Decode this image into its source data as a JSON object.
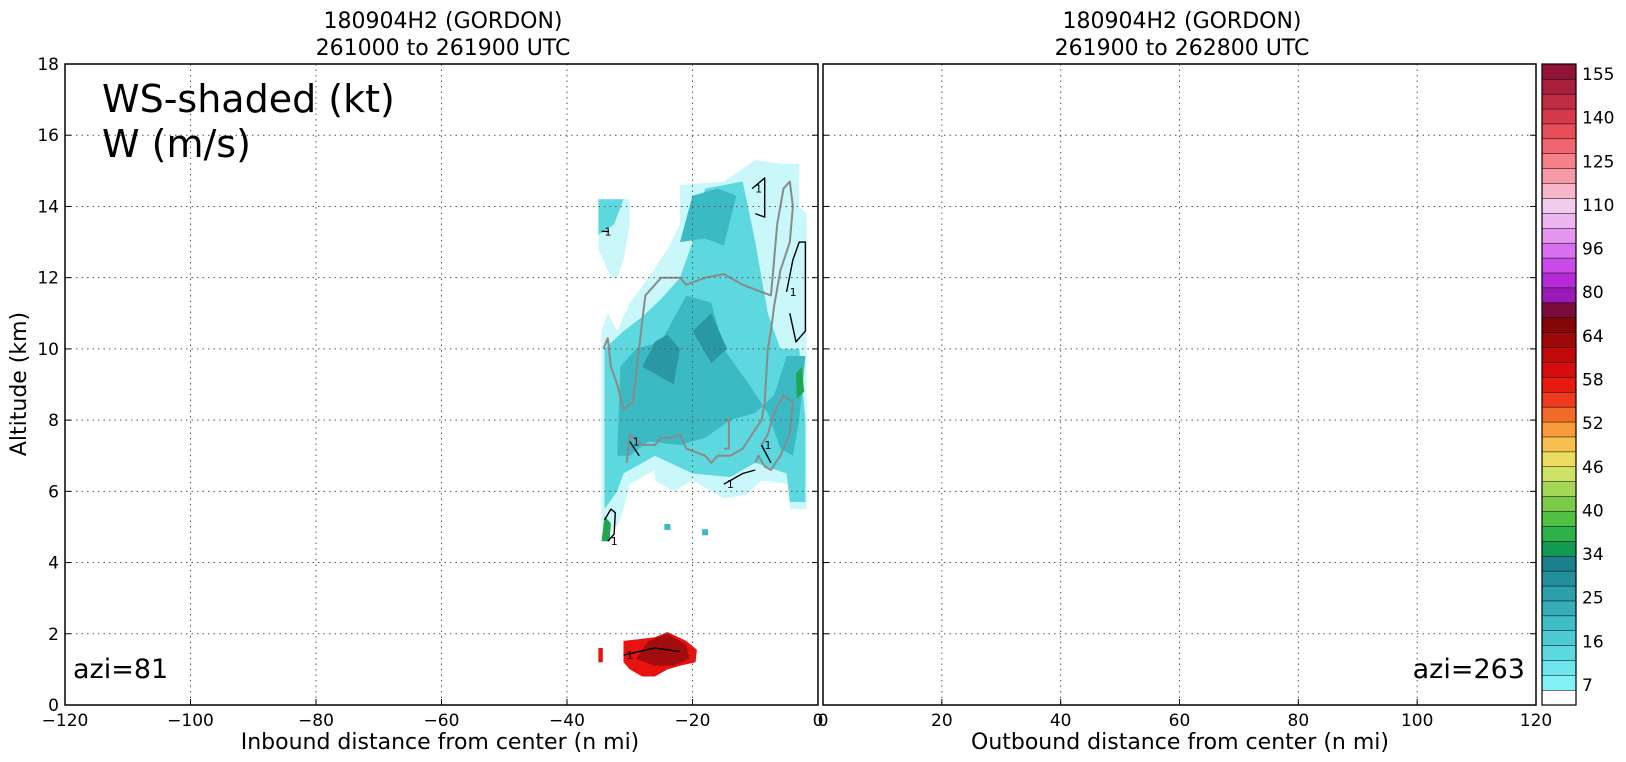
{
  "colors": {
    "cyan_light": "#c9f7fa",
    "cyan": "#5dd8de",
    "teal": "#3cbac4",
    "teal_dark": "#2a98a4",
    "green": "#1fa650",
    "red": "#e8120e",
    "red_dark": "#a30c0c",
    "contour_black": "#000000",
    "contour_gray": "#8a8a8a",
    "grid": "#555555"
  },
  "chart_data": [
    {
      "type": "heatmap",
      "panel": "left",
      "title_line1": "180904H2 (GORDON)",
      "title_line2": "261000 to 261900 UTC",
      "xlabel": "Inbound distance from center (n mi)",
      "ylabel": "Altitude (km)",
      "xlim": [
        -120,
        0
      ],
      "ylim": [
        0,
        18
      ],
      "xticks": [
        "−120",
        "−100",
        "−80",
        "−60",
        "−40",
        "−20",
        "0"
      ],
      "yticks": [
        "0",
        "2",
        "4",
        "6",
        "8",
        "10",
        "12",
        "14",
        "16",
        "18"
      ],
      "annotation_line1": "WS-shaded (kt)",
      "annotation_line2": "W (m/s)",
      "azimuth_label": "azi=81",
      "grid": true,
      "wind_speed_regions": [
        {
          "level": "light",
          "points": [
            [
              -34.5,
              8.8
            ],
            [
              -34.5,
              10.5
            ],
            [
              -33.5,
              11
            ],
            [
              -32,
              10.5
            ],
            [
              -30,
              11.3
            ],
            [
              -27,
              12
            ],
            [
              -24,
              12.8
            ],
            [
              -22,
              13.5
            ],
            [
              -22,
              14.6
            ],
            [
              -15,
              14.7
            ],
            [
              -10,
              15.3
            ],
            [
              -6,
              15.2
            ],
            [
              -3,
              15.2
            ],
            [
              -3,
              14
            ],
            [
              -1.8,
              13.8
            ],
            [
              -1.8,
              5.5
            ],
            [
              -4.5,
              5.5
            ],
            [
              -4.5,
              6.2
            ],
            [
              -9,
              6.3
            ],
            [
              -11.5,
              5.9
            ],
            [
              -15,
              5.8
            ],
            [
              -20,
              6.3
            ],
            [
              -23,
              6
            ],
            [
              -26,
              6.3
            ],
            [
              -26,
              6.6
            ],
            [
              -30,
              6.2
            ],
            [
              -31,
              5.5
            ],
            [
              -32,
              5
            ],
            [
              -34.5,
              5
            ],
            [
              -34.5,
              6.2
            ]
          ]
        },
        {
          "level": "light",
          "points": [
            [
              -35,
              12.8
            ],
            [
              -35,
              14.2
            ],
            [
              -30,
              14.2
            ],
            [
              -30,
              13.5
            ],
            [
              -31,
              12.5
            ],
            [
              -32,
              12
            ],
            [
              -33,
              12
            ]
          ]
        },
        {
          "level": "mid",
          "points": [
            [
              -34,
              5.5
            ],
            [
              -34,
              10
            ],
            [
              -31,
              10.5
            ],
            [
              -28,
              10.9
            ],
            [
              -25,
              11.4
            ],
            [
              -22,
              12
            ],
            [
              -20,
              13
            ],
            [
              -18,
              14.5
            ],
            [
              -12,
              14.7
            ],
            [
              -10,
              13
            ],
            [
              -8,
              11
            ],
            [
              -6,
              10
            ],
            [
              -3,
              10
            ],
            [
              -2,
              8
            ],
            [
              -2,
              5.7
            ],
            [
              -4.5,
              5.7
            ],
            [
              -5,
              6.5
            ],
            [
              -10,
              6.8
            ],
            [
              -14,
              6.4
            ],
            [
              -20,
              6.5
            ],
            [
              -26,
              7
            ],
            [
              -31,
              6.5
            ],
            [
              -32,
              6
            ]
          ]
        },
        {
          "level": "mid",
          "points": [
            [
              -35,
              13.2
            ],
            [
              -35,
              14.2
            ],
            [
              -31,
              14.2
            ],
            [
              -32.5,
              13.5
            ]
          ]
        },
        {
          "level": "dark",
          "points": [
            [
              -32,
              7
            ],
            [
              -31.5,
              9.5
            ],
            [
              -29,
              10
            ],
            [
              -25,
              10.2
            ],
            [
              -21,
              11.5
            ],
            [
              -17,
              11.3
            ],
            [
              -15,
              10
            ],
            [
              -13,
              9.5
            ],
            [
              -11,
              9
            ],
            [
              -8,
              8.2
            ],
            [
              -6,
              7.2
            ],
            [
              -4,
              7
            ],
            [
              -3,
              8
            ],
            [
              -2,
              9.8
            ],
            [
              -5,
              9.8
            ],
            [
              -7,
              8.7
            ],
            [
              -10,
              8.2
            ],
            [
              -14,
              8
            ],
            [
              -18,
              7.5
            ],
            [
              -22,
              7.3
            ],
            [
              -27,
              7.4
            ],
            [
              -30,
              7
            ]
          ]
        },
        {
          "level": "dark",
          "points": [
            [
              -22,
              13
            ],
            [
              -20,
              14.3
            ],
            [
              -16,
              14.5
            ],
            [
              -13,
              14.3
            ],
            [
              -15,
              12.9
            ],
            [
              -18,
              13.1
            ]
          ]
        },
        {
          "level": "darkest",
          "points": [
            [
              -28,
              9.5
            ],
            [
              -26,
              10.2
            ],
            [
              -24,
              10.4
            ],
            [
              -22,
              10
            ],
            [
              -23,
              9
            ]
          ]
        },
        {
          "level": "darkest",
          "points": [
            [
              -20,
              10.5
            ],
            [
              -17,
              11
            ],
            [
              -14.5,
              10
            ],
            [
              -17,
              9.6
            ]
          ]
        },
        {
          "level": "green",
          "points": [
            [
              -3.4,
              8.6
            ],
            [
              -3.5,
              9.3
            ],
            [
              -2.6,
              9.5
            ],
            [
              -2.2,
              8.8
            ]
          ]
        },
        {
          "level": "green",
          "points": [
            [
              -34.5,
              4.6
            ],
            [
              -34,
              5.3
            ],
            [
              -33,
              5.1
            ],
            [
              -33.2,
              4.6
            ]
          ]
        }
      ],
      "low_level_patch": [
        {
          "level": "red",
          "points": [
            [
              -31,
              1.2
            ],
            [
              -31,
              1.8
            ],
            [
              -26,
              1.9
            ],
            [
              -24,
              2.05
            ],
            [
              -21,
              1.8
            ],
            [
              -19.3,
              1.55
            ],
            [
              -19.5,
              1.2
            ],
            [
              -22,
              1.1
            ],
            [
              -24,
              1
            ],
            [
              -26,
              0.8
            ],
            [
              -28,
              0.8
            ],
            [
              -30,
              1
            ]
          ]
        },
        {
          "level": "red_dark",
          "points": [
            [
              -29,
              1.3
            ],
            [
              -27,
              1.8
            ],
            [
              -24,
              2
            ],
            [
              -21,
              1.7
            ],
            [
              -20.5,
              1.3
            ],
            [
              -23,
              1.1
            ],
            [
              -26,
              1.1
            ]
          ]
        },
        {
          "level": "red",
          "points": [
            [
              -35,
              1.2
            ],
            [
              -35,
              1.6
            ],
            [
              -34.3,
              1.6
            ],
            [
              -34.3,
              1.2
            ]
          ]
        }
      ],
      "isolated_cells": [
        {
          "level": "dark",
          "x": -24,
          "y": 5
        },
        {
          "level": "dark",
          "x": -18,
          "y": 4.85
        }
      ],
      "w_contours_black": [
        {
          "label": "1",
          "points": [
            [
              -5,
              11.6
            ],
            [
              -4,
              12.5
            ],
            [
              -3,
              13
            ],
            [
              -2,
              13
            ],
            [
              -2,
              10.5
            ],
            [
              -3.5,
              10.2
            ],
            [
              -4.5,
              11
            ]
          ]
        },
        {
          "label": "1",
          "points": [
            [
              -10.5,
              14.5
            ],
            [
              -8.5,
              14.8
            ],
            [
              -8.5,
              13.7
            ],
            [
              -10,
              13.8
            ]
          ]
        },
        {
          "label": "1",
          "points": [
            [
              -34.5,
              13.3
            ],
            [
              -33.3,
              13.3
            ]
          ]
        },
        {
          "label": "1",
          "points": [
            [
              -33.5,
              4.6
            ],
            [
              -32.5,
              4.8
            ],
            [
              -32.3,
              5.4
            ],
            [
              -33,
              5.5
            ],
            [
              -34,
              5.2
            ]
          ]
        },
        {
          "label": "1",
          "points": [
            [
              -31,
              1.4
            ],
            [
              -26,
              1.6
            ],
            [
              -22,
              1.5
            ]
          ]
        },
        {
          "label": "1",
          "points": [
            [
              -30,
              7.4
            ],
            [
              -28.5,
              7
            ]
          ]
        },
        {
          "label": "1",
          "points": [
            [
              -15,
              6.2
            ],
            [
              -12,
              6.5
            ],
            [
              -10,
              6.6
            ]
          ]
        },
        {
          "label": "1",
          "points": [
            [
              -9,
              7.3
            ],
            [
              -7.5,
              6.8
            ]
          ]
        }
      ],
      "w_contours_gray": [
        {
          "points": [
            [
              -34.2,
              10
            ],
            [
              -33.5,
              10.3
            ],
            [
              -33,
              9.5
            ],
            [
              -32,
              9
            ],
            [
              -31,
              8.3
            ],
            [
              -29.5,
              8.5
            ],
            [
              -28,
              10.8
            ],
            [
              -27.5,
              11.5
            ],
            [
              -25,
              12
            ],
            [
              -22,
              12
            ],
            [
              -21,
              11.8
            ],
            [
              -18,
              12
            ],
            [
              -15,
              12.1
            ],
            [
              -12,
              11.8
            ],
            [
              -9,
              11.6
            ],
            [
              -7.5,
              11.5
            ],
            [
              -7,
              12.5
            ],
            [
              -6.5,
              13.5
            ],
            [
              -5.5,
              14.5
            ],
            [
              -4.5,
              14.7
            ],
            [
              -4,
              14
            ],
            [
              -4.5,
              13
            ],
            [
              -6,
              12.2
            ],
            [
              -7,
              11.2
            ],
            [
              -7.5,
              10.5
            ],
            [
              -8,
              10
            ],
            [
              -8.5,
              8.5
            ],
            [
              -9,
              8
            ],
            [
              -12,
              7.2
            ],
            [
              -14,
              7
            ],
            [
              -16,
              7
            ],
            [
              -17,
              6.8
            ],
            [
              -18,
              7
            ],
            [
              -21,
              7.2
            ],
            [
              -22,
              7.6
            ],
            [
              -23.5,
              7.5
            ],
            [
              -25,
              7.5
            ],
            [
              -26,
              7.3
            ],
            [
              -28,
              7.3
            ],
            [
              -30,
              7.6
            ],
            [
              -30.5,
              6.8
            ]
          ]
        },
        {
          "points": [
            [
              -10,
              6.8
            ],
            [
              -9.5,
              7
            ],
            [
              -8.5,
              6.7
            ],
            [
              -7.5,
              6.6
            ],
            [
              -6,
              7
            ],
            [
              -4.5,
              7.6
            ],
            [
              -4,
              8.5
            ],
            [
              -5.5,
              8.7
            ],
            [
              -7,
              8.2
            ],
            [
              -8,
              7.6
            ],
            [
              -9,
              7.3
            ]
          ]
        },
        {
          "points": [
            [
              -15,
              8
            ],
            [
              -14.2,
              8
            ],
            [
              -14.2,
              7.2
            ],
            [
              -15,
              7.2
            ]
          ]
        }
      ]
    },
    {
      "type": "heatmap",
      "panel": "right",
      "title_line1": "180904H2 (GORDON)",
      "title_line2": "261900 to 262800 UTC",
      "xlabel": "Outbound distance from center (n mi)",
      "xlim": [
        0,
        120
      ],
      "ylim": [
        0,
        18
      ],
      "xticks": [
        "0",
        "20",
        "40",
        "60",
        "80",
        "100",
        "120"
      ],
      "azimuth_label": "azi=263",
      "grid": true
    }
  ],
  "colorbar": {
    "tick_labels": [
      "155",
      "140",
      "125",
      "110",
      "96",
      "80",
      "64",
      "58",
      "52",
      "46",
      "40",
      "34",
      "25",
      "16",
      "7"
    ],
    "colors_bottom_to_top": [
      "#ffffff",
      "#82f2f6",
      "#6de5ea",
      "#5dd8de",
      "#4ecbd2",
      "#40bec7",
      "#35aeb8",
      "#2b9faa",
      "#238f9a",
      "#1a808b",
      "#129b50",
      "#2db24a",
      "#52bf45",
      "#7acb4a",
      "#a5d756",
      "#cde266",
      "#eddc62",
      "#f6c04e",
      "#f89b3a",
      "#f26a2a",
      "#ee3a1c",
      "#e81a10",
      "#d80c0c",
      "#c00a0a",
      "#a00808",
      "#850606",
      "#7a0c3c",
      "#9a1ab8",
      "#b42ad8",
      "#c84ae8",
      "#d870ee",
      "#e496f0",
      "#ecb6f0",
      "#f2ccef",
      "#f6b6c8",
      "#f79aa8",
      "#f5808a",
      "#f06670",
      "#e84e58",
      "#d63a4a",
      "#c02c42",
      "#a8203c",
      "#901438"
    ]
  }
}
